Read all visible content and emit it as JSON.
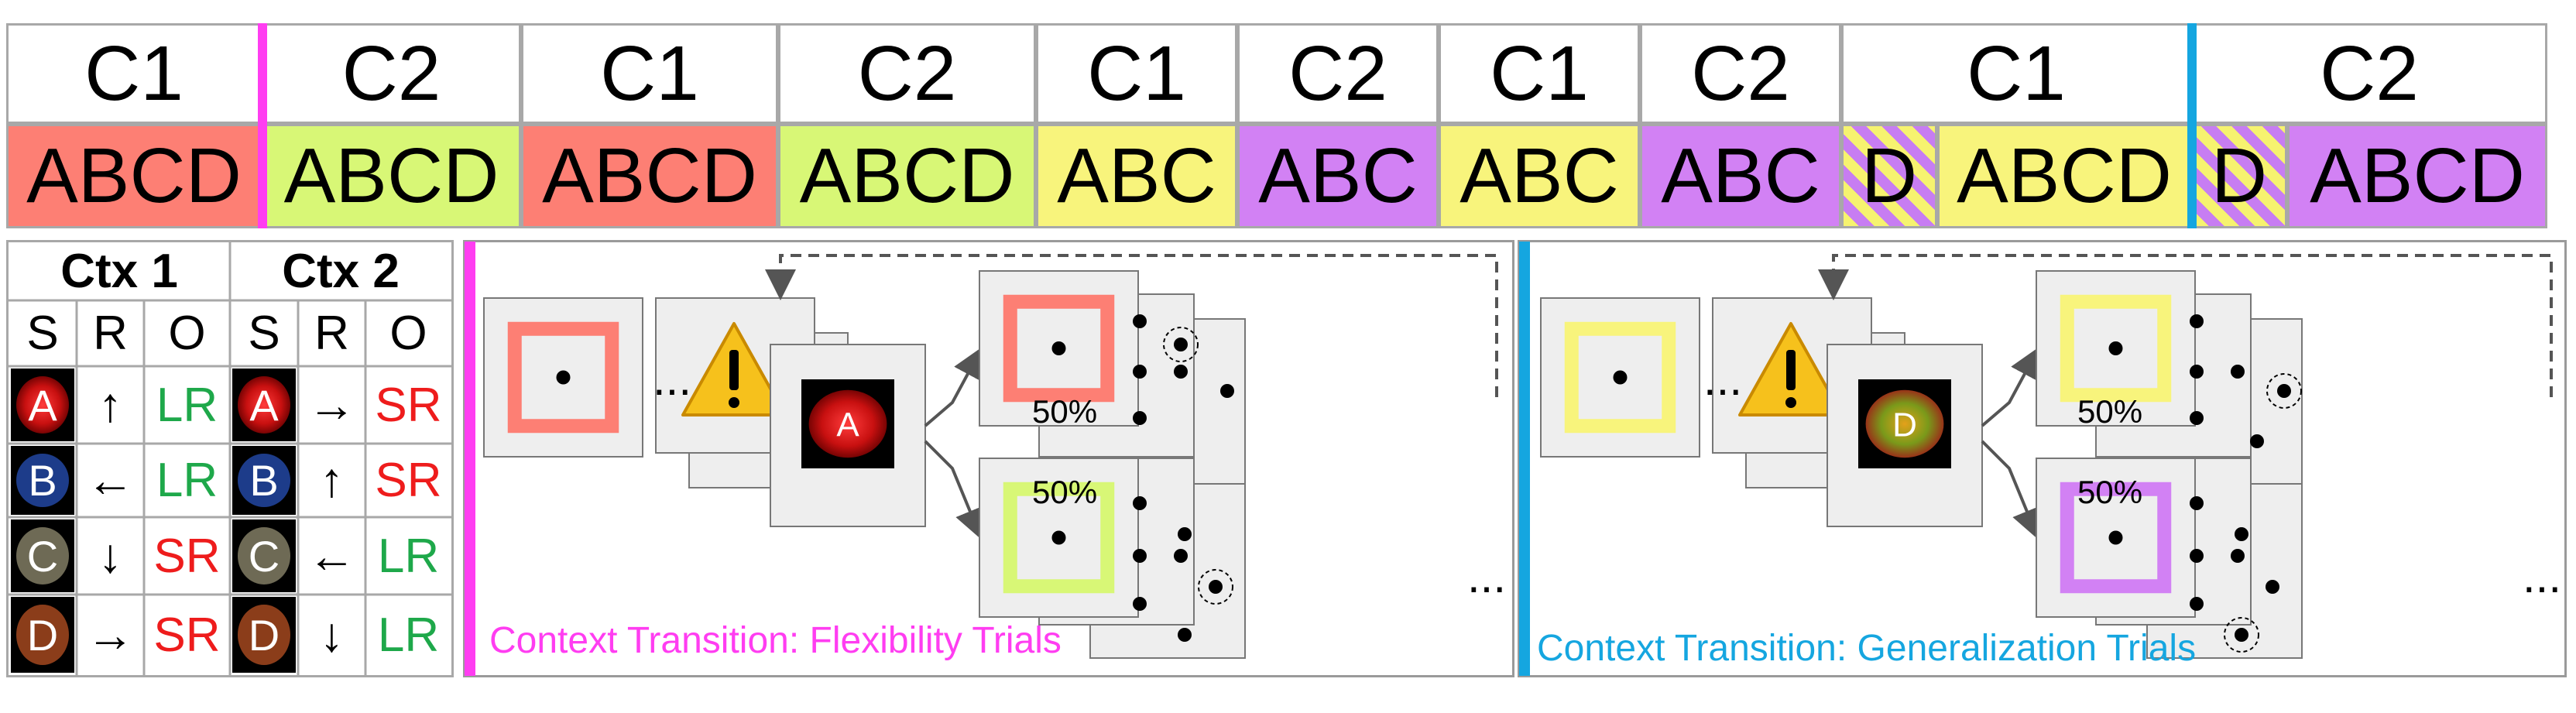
{
  "sequence": {
    "context_row": [
      "C1",
      "C2",
      "C1",
      "C2",
      "C1",
      "C2",
      "C1",
      "C2",
      "C1",
      "C2"
    ],
    "stimulus_row": [
      "ABCD",
      "ABCD",
      "ABCD",
      "ABCD",
      "ABC",
      "ABC",
      "ABC",
      "ABC",
      "D",
      "ABCD",
      "D",
      "ABCD"
    ],
    "colors": {
      "red": "#fd7f74",
      "green": "#d8f776",
      "yellow": "#f8f47c",
      "purple": "#d281f4",
      "magenta": "#ff3df1",
      "cyan": "#15a6e0"
    }
  },
  "table": {
    "ctx1": "Ctx 1",
    "ctx2": "Ctx 2",
    "cols": [
      "S",
      "R",
      "O",
      "S",
      "R",
      "O"
    ],
    "rows": [
      {
        "s": "A",
        "r1": "↑",
        "o1": "LR",
        "r2": "→",
        "o2": "SR"
      },
      {
        "s": "B",
        "r1": "←",
        "o1": "LR",
        "r2": "↑",
        "o2": "SR"
      },
      {
        "s": "C",
        "r1": "↓",
        "o1": "SR",
        "r2": "←",
        "o2": "LR"
      },
      {
        "s": "D",
        "r1": "→",
        "o1": "SR",
        "r2": "↓",
        "o2": "LR"
      }
    ],
    "colors": {
      "LR": "#1ea84a",
      "SR": "#ee1c1c"
    }
  },
  "panel_left": {
    "caption": "Context Transition: Flexibility Trials",
    "stim_letter": "A",
    "pct_top": "50%",
    "pct_bottom": "50%",
    "ellipsis_left": "...",
    "ellipsis_right": "...",
    "warning_icon": "warning-triangle-icon"
  },
  "panel_right": {
    "caption": "Context Transition: Generalization Trials",
    "stim_letter": "D",
    "pct_top": "50%",
    "pct_bottom": "50%",
    "ellipsis_left": "...",
    "ellipsis_right": "...",
    "warning_icon": "warning-triangle-icon"
  }
}
